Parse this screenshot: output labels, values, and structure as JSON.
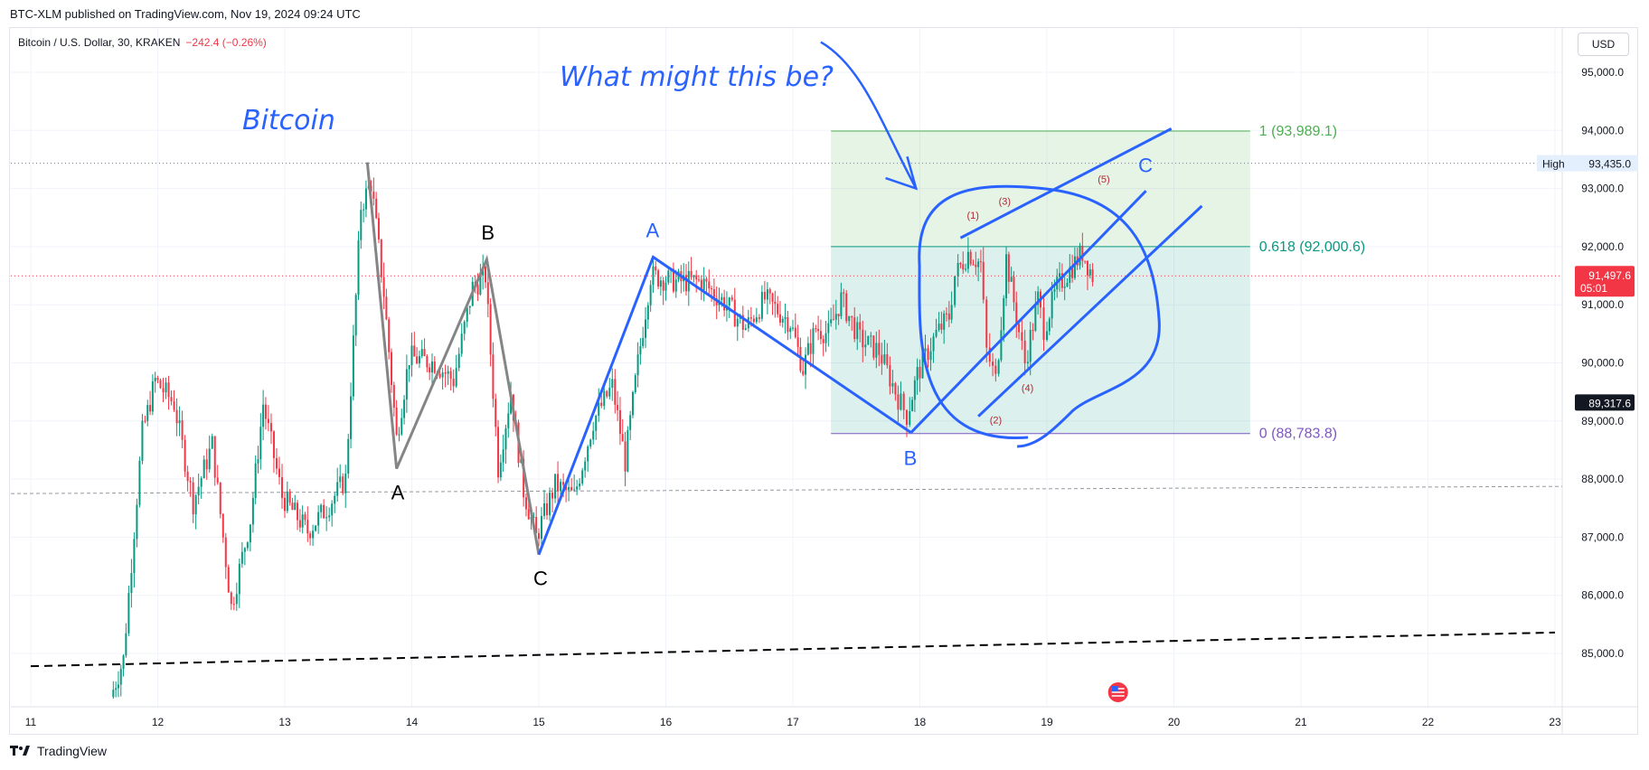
{
  "header": {
    "published": "BTC-XLM published on TradingView.com, Nov 19, 2024 09:24 UTC",
    "symbol": "Bitcoin / U.S. Dollar, 30, KRAKEN",
    "change": "−242.4 (−0.26%)",
    "currency_button": "USD"
  },
  "footer": {
    "brand": "TradingView"
  },
  "colors": {
    "up": "#089981",
    "down": "#f23645",
    "blue_annotation": "#2962ff",
    "fib_green": "#4caf50",
    "fib_teal": "#089981",
    "fib_purple": "#7e57c2"
  },
  "chart_data": {
    "type": "candlestick",
    "timeframe": "30",
    "exchange": "KRAKEN",
    "x_ticks": [
      "11",
      "12",
      "13",
      "14",
      "15",
      "16",
      "17",
      "18",
      "19",
      "20",
      "21",
      "22",
      "23"
    ],
    "x_range_days": [
      11,
      23.3
    ],
    "y_ticks": [
      "95,000.0",
      "94,000.0",
      "93,000.0",
      "92,000.0",
      "91,000.0",
      "90,000.0",
      "89,000.0",
      "88,000.0",
      "87,000.0",
      "86,000.0",
      "85,000.0"
    ],
    "y_range": [
      84200,
      95800
    ],
    "price_labels": [
      {
        "text": "High",
        "value": "93,435.0",
        "price": 93435
      },
      {
        "text": "91,497.6",
        "sub": "05:01",
        "price": 91497.6,
        "style": "current"
      },
      {
        "text": "89,317.6",
        "price": 89317.6,
        "style": "dark"
      }
    ],
    "fibonacci": [
      {
        "label": "1 (93,989.1)",
        "price": 93989.1,
        "color": "#4caf50"
      },
      {
        "label": "0.618 (92,000.6)",
        "price": 92000.6,
        "color": "#089981"
      },
      {
        "label": "0 (88,783.8)",
        "price": 88783.8,
        "color": "#7e57c2"
      }
    ],
    "fib_x_range_days": [
      17.3,
      20.6
    ],
    "annotations": {
      "title": "Bitcoin",
      "question": "What might this be?",
      "gray_wave": [
        {
          "day": 13.65,
          "price": 93450
        },
        {
          "day": 13.88,
          "price": 88180,
          "label": "A"
        },
        {
          "day": 14.59,
          "price": 91780,
          "label": "B"
        },
        {
          "day": 15.0,
          "price": 86700,
          "label": "C"
        }
      ],
      "blue_wave": [
        {
          "day": 15.0,
          "price": 86700
        },
        {
          "day": 15.9,
          "price": 91820,
          "label": "A"
        },
        {
          "day": 17.93,
          "price": 88800,
          "label": "B"
        }
      ],
      "blue_c_label": "C",
      "subwaves": [
        "(1)",
        "(2)",
        "(3)",
        "(4)",
        "(5)"
      ],
      "green_dashed_level": 87750,
      "black_dashed_trend": [
        {
          "day": 11.0,
          "price": 84780
        },
        {
          "day": 23.0,
          "price": 85360
        }
      ]
    },
    "series_anchor_points": [
      {
        "day": 11.65,
        "price": 84250
      },
      {
        "day": 11.75,
        "price": 84900
      },
      {
        "day": 11.9,
        "price": 88800
      },
      {
        "day": 12.0,
        "price": 89700
      },
      {
        "day": 12.15,
        "price": 89300
      },
      {
        "day": 12.3,
        "price": 87600
      },
      {
        "day": 12.45,
        "price": 88600
      },
      {
        "day": 12.6,
        "price": 85800
      },
      {
        "day": 12.75,
        "price": 87300
      },
      {
        "day": 12.85,
        "price": 89300
      },
      {
        "day": 13.0,
        "price": 87700
      },
      {
        "day": 13.2,
        "price": 87100
      },
      {
        "day": 13.35,
        "price": 87500
      },
      {
        "day": 13.5,
        "price": 88000
      },
      {
        "day": 13.62,
        "price": 92700
      },
      {
        "day": 13.7,
        "price": 93100
      },
      {
        "day": 13.8,
        "price": 91200
      },
      {
        "day": 13.9,
        "price": 88700
      },
      {
        "day": 14.0,
        "price": 90100
      },
      {
        "day": 14.2,
        "price": 90000
      },
      {
        "day": 14.35,
        "price": 89700
      },
      {
        "day": 14.5,
        "price": 91300
      },
      {
        "day": 14.6,
        "price": 91500
      },
      {
        "day": 14.7,
        "price": 88200
      },
      {
        "day": 14.8,
        "price": 89500
      },
      {
        "day": 14.9,
        "price": 87800
      },
      {
        "day": 15.0,
        "price": 87000
      },
      {
        "day": 15.15,
        "price": 87900
      },
      {
        "day": 15.3,
        "price": 87700
      },
      {
        "day": 15.45,
        "price": 89000
      },
      {
        "day": 15.6,
        "price": 89600
      },
      {
        "day": 15.7,
        "price": 88300
      },
      {
        "day": 15.8,
        "price": 90000
      },
      {
        "day": 15.9,
        "price": 91500
      },
      {
        "day": 16.1,
        "price": 91400
      },
      {
        "day": 16.3,
        "price": 91400
      },
      {
        "day": 16.5,
        "price": 91000
      },
      {
        "day": 16.65,
        "price": 90600
      },
      {
        "day": 16.8,
        "price": 91100
      },
      {
        "day": 17.0,
        "price": 90700
      },
      {
        "day": 17.1,
        "price": 89900
      },
      {
        "day": 17.2,
        "price": 90600
      },
      {
        "day": 17.3,
        "price": 90500
      },
      {
        "day": 17.4,
        "price": 91100
      },
      {
        "day": 17.55,
        "price": 90400
      },
      {
        "day": 17.7,
        "price": 90200
      },
      {
        "day": 17.85,
        "price": 89400
      },
      {
        "day": 17.92,
        "price": 89100
      },
      {
        "day": 18.0,
        "price": 89800
      },
      {
        "day": 18.15,
        "price": 90500
      },
      {
        "day": 18.25,
        "price": 90800
      },
      {
        "day": 18.3,
        "price": 91500
      },
      {
        "day": 18.4,
        "price": 91900
      },
      {
        "day": 18.5,
        "price": 91700
      },
      {
        "day": 18.55,
        "price": 90200
      },
      {
        "day": 18.62,
        "price": 89700
      },
      {
        "day": 18.7,
        "price": 91800
      },
      {
        "day": 18.78,
        "price": 90800
      },
      {
        "day": 18.85,
        "price": 90000
      },
      {
        "day": 18.95,
        "price": 91100
      },
      {
        "day": 19.0,
        "price": 90600
      },
      {
        "day": 19.1,
        "price": 91300
      },
      {
        "day": 19.2,
        "price": 91600
      },
      {
        "day": 19.3,
        "price": 91900
      },
      {
        "day": 19.38,
        "price": 91500
      }
    ]
  }
}
